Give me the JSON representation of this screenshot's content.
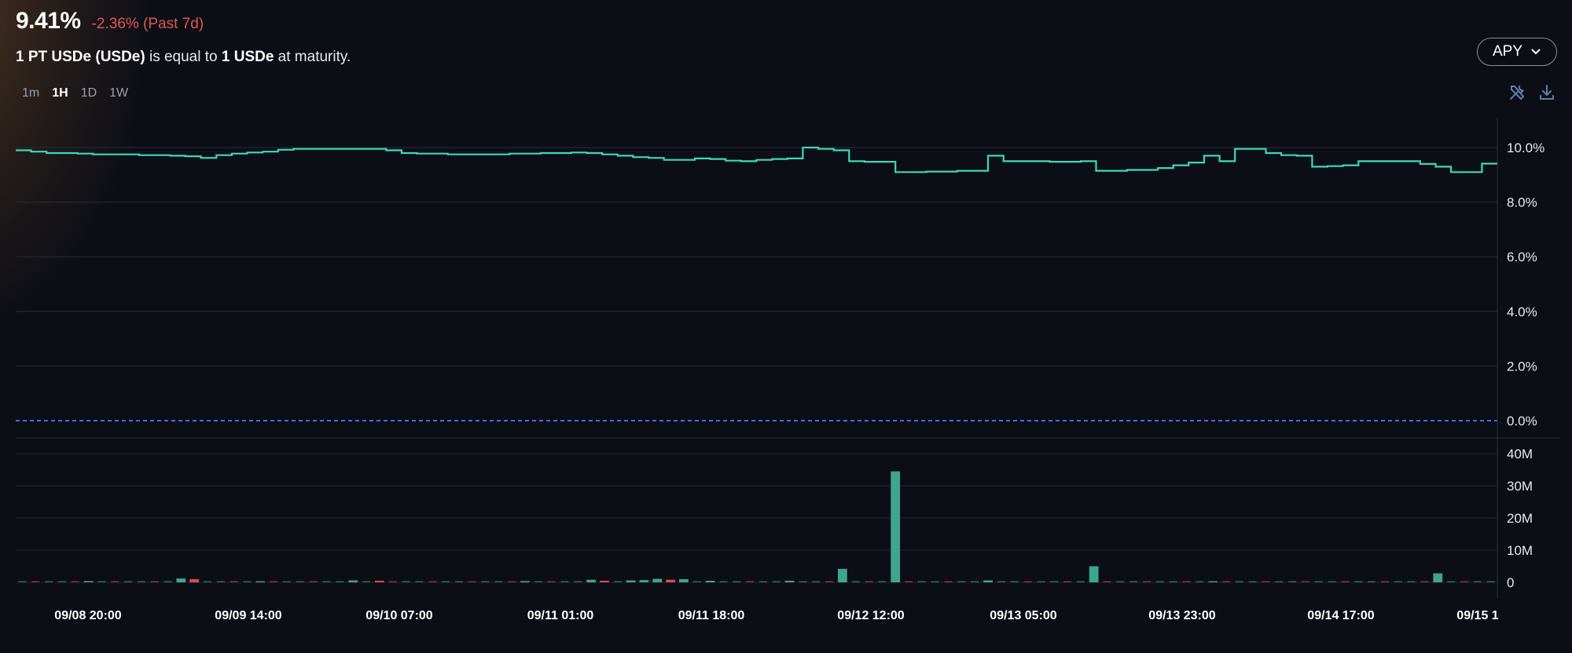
{
  "header": {
    "apy_value": "9.41%",
    "apy_change": "-2.36% (Past 7d)",
    "subtitle": {
      "part1": "1 PT USDe (USDe)",
      "part2": " is equal to ",
      "part3": "1 USDe",
      "part4": " at maturity."
    }
  },
  "timeframes": [
    {
      "label": "1m",
      "active": false
    },
    {
      "label": "1H",
      "active": true
    },
    {
      "label": "1D",
      "active": false
    },
    {
      "label": "1W",
      "active": false
    }
  ],
  "metric_dropdown": {
    "label": "APY",
    "icon": "chevron-down-icon"
  },
  "toolbar": {
    "icons": [
      "tools-icon",
      "download-icon"
    ]
  },
  "colors": {
    "background": "#0c0e16",
    "apy_line": "#3dd9b4",
    "zero_line": "#4f64ff",
    "volume_up": "#3fa58f",
    "volume_down": "#e04b4b",
    "negative_change": "#e0584f"
  },
  "chart_data": {
    "type": "line",
    "title": "",
    "x_ticks": [
      "09/08 20:00",
      "09/09 14:00",
      "09/10 07:00",
      "09/11 01:00",
      "09/11 18:00",
      "09/12 12:00",
      "09/13 05:00",
      "09/13 23:00",
      "09/14 17:00",
      "09/15 1"
    ],
    "apy": {
      "y_ticks": [
        "10.0%",
        "8.0%",
        "6.0%",
        "4.0%",
        "2.0%",
        "0.0%"
      ],
      "ylim": [
        0,
        10.0
      ],
      "y_unit": "%",
      "reference_line": 0,
      "series": [
        {
          "values": [
            9.9,
            9.85,
            9.8,
            9.8,
            9.78,
            9.75,
            9.75,
            9.75,
            9.72,
            9.72,
            9.7,
            9.68,
            9.62,
            9.72,
            9.78,
            9.82,
            9.85,
            9.92,
            9.95,
            9.95,
            9.95,
            9.95,
            9.95,
            9.95,
            9.9,
            9.8,
            9.78,
            9.78,
            9.75,
            9.75,
            9.75,
            9.75,
            9.78,
            9.78,
            9.8,
            9.8,
            9.82,
            9.8,
            9.75,
            9.7,
            9.65,
            9.62,
            9.55,
            9.55,
            9.6,
            9.58,
            9.52,
            9.5,
            9.55,
            9.58,
            9.6,
            10.0,
            9.95,
            9.9,
            9.5,
            9.48,
            9.48,
            9.1,
            9.1,
            9.12,
            9.12,
            9.15,
            9.15,
            9.7,
            9.5,
            9.5,
            9.5,
            9.48,
            9.48,
            9.5,
            9.15,
            9.15,
            9.18,
            9.18,
            9.25,
            9.35,
            9.45,
            9.7,
            9.5,
            9.95,
            9.95,
            9.8,
            9.72,
            9.7,
            9.3,
            9.32,
            9.35,
            9.5,
            9.5,
            9.5,
            9.5,
            9.4,
            9.3,
            9.1,
            9.1,
            9.41
          ]
        }
      ]
    },
    "volume": {
      "y_ticks": [
        "40M",
        "30M",
        "20M",
        "10M",
        "0"
      ],
      "ylim": [
        0,
        40
      ],
      "y_unit": "M",
      "bars": [
        {
          "i": 5,
          "v": 0.4,
          "up": true
        },
        {
          "i": 12,
          "v": 1.2,
          "up": true
        },
        {
          "i": 13,
          "v": 1.0,
          "up": false
        },
        {
          "i": 18,
          "v": 0.3,
          "up": true
        },
        {
          "i": 25,
          "v": 0.6,
          "up": true
        },
        {
          "i": 27,
          "v": 0.5,
          "up": false
        },
        {
          "i": 38,
          "v": 0.4,
          "up": true
        },
        {
          "i": 43,
          "v": 0.8,
          "up": true
        },
        {
          "i": 44,
          "v": 0.5,
          "up": false
        },
        {
          "i": 46,
          "v": 0.6,
          "up": true
        },
        {
          "i": 47,
          "v": 0.7,
          "up": true
        },
        {
          "i": 48,
          "v": 1.1,
          "up": true
        },
        {
          "i": 49,
          "v": 0.8,
          "up": false
        },
        {
          "i": 50,
          "v": 1.0,
          "up": true
        },
        {
          "i": 52,
          "v": 0.5,
          "up": true
        },
        {
          "i": 58,
          "v": 0.5,
          "up": true
        },
        {
          "i": 62,
          "v": 4.2,
          "up": true
        },
        {
          "i": 66,
          "v": 34.5,
          "up": true
        },
        {
          "i": 73,
          "v": 0.6,
          "up": true
        },
        {
          "i": 81,
          "v": 5.0,
          "up": true
        },
        {
          "i": 90,
          "v": 0.3,
          "up": true
        },
        {
          "i": 107,
          "v": 2.8,
          "up": true
        }
      ],
      "bar_count": 112
    }
  }
}
